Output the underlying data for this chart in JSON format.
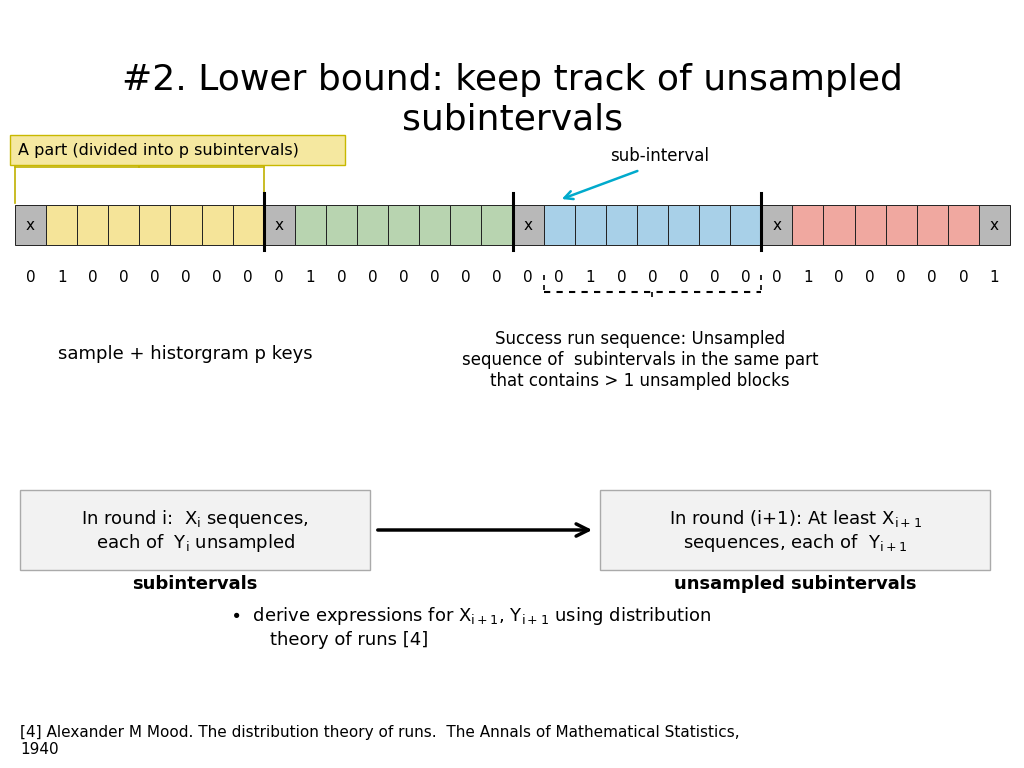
{
  "title": "#2. Lower bound: keep track of unsampled\nsubintervals",
  "title_fontsize": 26,
  "bg_color": "#ffffff",
  "colors": {
    "yellow": "#f5e499",
    "green": "#b8d4b0",
    "blue": "#a8d0e8",
    "red": "#f0a8a0",
    "gray": "#b8b8b8",
    "dark_border": "#222222"
  },
  "part_label_text": "A part (divided into p subintervals)",
  "part_label_bg": "#f5e8a0",
  "subinterval_text": "sub-interval",
  "sample_label": "sample + historgram p keys",
  "success_run_label": "Success run sequence: Unsampled\nsequence of  subintervals in the same part\nthat contains > 1 unsampled blocks",
  "footnote": "[4] Alexander M Mood. The distribution theory of runs.  The Annals of Mathematical Statistics,\n1940",
  "seq_part1": [
    0,
    1,
    0,
    0,
    0,
    0,
    0,
    0
  ],
  "seq_part2": [
    0,
    1,
    0,
    0,
    0,
    0,
    0,
    0
  ],
  "seq_part3": [
    0,
    0,
    1,
    0,
    0,
    0,
    0,
    0
  ],
  "seq_part4": [
    0,
    1,
    0,
    0,
    0,
    0,
    0,
    1
  ]
}
